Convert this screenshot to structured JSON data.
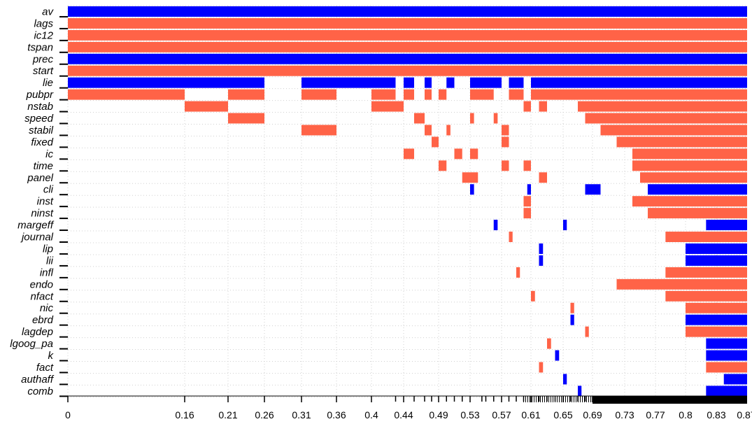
{
  "colors": {
    "positive": "#FF6347",
    "negative": "#0000FF",
    "grid": "#d0d0d0",
    "axis": "#000000"
  },
  "chart_data": {
    "type": "heatmap",
    "title": "",
    "xlabel": "",
    "ylabel": "",
    "xlim": [
      0,
      1
    ],
    "variables": [
      "av",
      "lags",
      "ic12",
      "tspan",
      "prec",
      "start",
      "lie",
      "pubpr",
      "nstab",
      "speed",
      "stabil",
      "fixed",
      "ic",
      "time",
      "panel",
      "cli",
      "inst",
      "ninst",
      "margeff",
      "journal",
      "lip",
      "lii",
      "infl",
      "endo",
      "nfact",
      "nic",
      "ebrd",
      "lagdep",
      "lgoog_pa",
      "k",
      "fact",
      "authaff",
      "comb"
    ],
    "x_tick_labels": [
      "0",
      "0.16",
      "0.21",
      "0.26",
      "0.31",
      "0.36",
      "0.4",
      "0.44",
      "0.49",
      "0.53",
      "0.57",
      "0.61",
      "0.65",
      "0.69",
      "0.73",
      "0.77",
      "0.8",
      "0.83",
      "0.87"
    ],
    "x_ticks": [
      0,
      0.16,
      0.21,
      0.26,
      0.31,
      0.36,
      0.4,
      0.44,
      0.49,
      0.53,
      0.57,
      0.61,
      0.65,
      0.69,
      0.73,
      0.77,
      0.8,
      0.83,
      0.87
    ],
    "x_ticks_unlabeled": [
      0.43,
      0.455,
      0.47,
      0.48,
      0.5,
      0.51,
      0.52,
      0.545,
      0.55,
      0.56,
      0.58,
      0.59,
      0.6,
      0.62,
      0.63,
      0.64,
      0.66,
      0.67,
      0.68
    ],
    "inclusion_segments": {
      "av": [
        [
          0,
          1,
          "neg"
        ]
      ],
      "lags": [
        [
          0,
          1,
          "pos"
        ]
      ],
      "ic12": [
        [
          0,
          1,
          "pos"
        ]
      ],
      "tspan": [
        [
          0,
          1,
          "pos"
        ]
      ],
      "prec": [
        [
          0,
          1,
          "neg"
        ]
      ],
      "start": [
        [
          0,
          1,
          "pos"
        ]
      ],
      "lie": [
        [
          0,
          0.26,
          "neg"
        ],
        [
          0.31,
          0.43,
          "neg"
        ],
        [
          0.44,
          0.455,
          "neg"
        ],
        [
          0.47,
          0.48,
          "neg"
        ],
        [
          0.5,
          0.51,
          "neg"
        ],
        [
          0.53,
          0.57,
          "neg"
        ],
        [
          0.58,
          0.6,
          "neg"
        ],
        [
          0.61,
          1,
          "neg"
        ]
      ],
      "pubpr": [
        [
          0,
          0.16,
          "pos"
        ],
        [
          0.21,
          0.26,
          "pos"
        ],
        [
          0.31,
          0.36,
          "pos"
        ],
        [
          0.4,
          0.43,
          "pos"
        ],
        [
          0.44,
          0.455,
          "pos"
        ],
        [
          0.47,
          0.48,
          "pos"
        ],
        [
          0.49,
          0.5,
          "pos"
        ],
        [
          0.53,
          0.56,
          "pos"
        ],
        [
          0.58,
          0.6,
          "pos"
        ],
        [
          0.61,
          1,
          "pos"
        ]
      ],
      "nstab": [
        [
          0.16,
          0.21,
          "pos"
        ],
        [
          0.4,
          0.44,
          "pos"
        ],
        [
          0.6,
          0.61,
          "pos"
        ],
        [
          0.62,
          0.63,
          "pos"
        ],
        [
          0.67,
          1,
          "pos"
        ]
      ],
      "speed": [
        [
          0.21,
          0.26,
          "pos"
        ],
        [
          0.455,
          0.47,
          "pos"
        ],
        [
          0.53,
          0.535,
          "pos"
        ],
        [
          0.56,
          0.565,
          "pos"
        ],
        [
          0.68,
          1,
          "pos"
        ]
      ],
      "stabil": [
        [
          0.31,
          0.36,
          "pos"
        ],
        [
          0.47,
          0.48,
          "pos"
        ],
        [
          0.5,
          0.505,
          "pos"
        ],
        [
          0.57,
          0.58,
          "pos"
        ],
        [
          0.7,
          1,
          "pos"
        ]
      ],
      "fixed": [
        [
          0.48,
          0.49,
          "pos"
        ],
        [
          0.57,
          0.58,
          "pos"
        ],
        [
          0.72,
          1,
          "pos"
        ]
      ],
      "ic": [
        [
          0.44,
          0.455,
          "pos"
        ],
        [
          0.51,
          0.52,
          "pos"
        ],
        [
          0.53,
          0.54,
          "pos"
        ],
        [
          0.74,
          1,
          "pos"
        ]
      ],
      "time": [
        [
          0.49,
          0.5,
          "pos"
        ],
        [
          0.57,
          0.58,
          "pos"
        ],
        [
          0.6,
          0.61,
          "pos"
        ],
        [
          0.74,
          1,
          "pos"
        ]
      ],
      "panel": [
        [
          0.52,
          0.53,
          "pos"
        ],
        [
          0.53,
          0.54,
          "pos"
        ],
        [
          0.62,
          0.63,
          "pos"
        ],
        [
          0.75,
          1,
          "pos"
        ]
      ],
      "cli": [
        [
          0.53,
          0.535,
          "neg"
        ],
        [
          0.605,
          0.61,
          "neg"
        ],
        [
          0.68,
          0.7,
          "neg"
        ],
        [
          0.76,
          1,
          "neg"
        ]
      ],
      "inst": [
        [
          0.6,
          0.61,
          "pos"
        ],
        [
          0.74,
          1,
          "pos"
        ]
      ],
      "ninst": [
        [
          0.6,
          0.61,
          "pos"
        ],
        [
          0.76,
          1,
          "pos"
        ]
      ],
      "margeff": [
        [
          0.56,
          0.565,
          "neg"
        ],
        [
          0.65,
          0.655,
          "neg"
        ],
        [
          0.82,
          1,
          "neg"
        ]
      ],
      "journal": [
        [
          0.58,
          0.585,
          "pos"
        ],
        [
          0.78,
          1,
          "pos"
        ]
      ],
      "lip": [
        [
          0.62,
          0.625,
          "neg"
        ],
        [
          0.8,
          1,
          "neg"
        ]
      ],
      "lii": [
        [
          0.62,
          0.625,
          "neg"
        ],
        [
          0.8,
          1,
          "neg"
        ]
      ],
      "infl": [
        [
          0.59,
          0.595,
          "pos"
        ],
        [
          0.78,
          1,
          "pos"
        ]
      ],
      "endo": [
        [
          0.72,
          1,
          "pos"
        ]
      ],
      "nfact": [
        [
          0.61,
          0.615,
          "pos"
        ],
        [
          0.78,
          1,
          "pos"
        ]
      ],
      "nic": [
        [
          0.66,
          0.665,
          "pos"
        ],
        [
          0.8,
          1,
          "pos"
        ]
      ],
      "ebrd": [
        [
          0.66,
          0.665,
          "neg"
        ],
        [
          0.8,
          1,
          "neg"
        ]
      ],
      "lagdep": [
        [
          0.68,
          0.685,
          "pos"
        ],
        [
          0.8,
          1,
          "pos"
        ]
      ],
      "lgoog_pa": [
        [
          0.63,
          0.635,
          "pos"
        ],
        [
          0.82,
          1,
          "neg"
        ]
      ],
      "k": [
        [
          0.64,
          0.645,
          "neg"
        ],
        [
          0.82,
          1,
          "neg"
        ]
      ],
      "fact": [
        [
          0.62,
          0.625,
          "pos"
        ],
        [
          0.82,
          1,
          "pos"
        ]
      ],
      "authaff": [
        [
          0.65,
          0.655,
          "neg"
        ],
        [
          0.84,
          1,
          "neg"
        ]
      ],
      "comb": [
        [
          0.67,
          0.675,
          "neg"
        ],
        [
          0.82,
          1,
          "neg"
        ]
      ]
    },
    "legend": ""
  }
}
